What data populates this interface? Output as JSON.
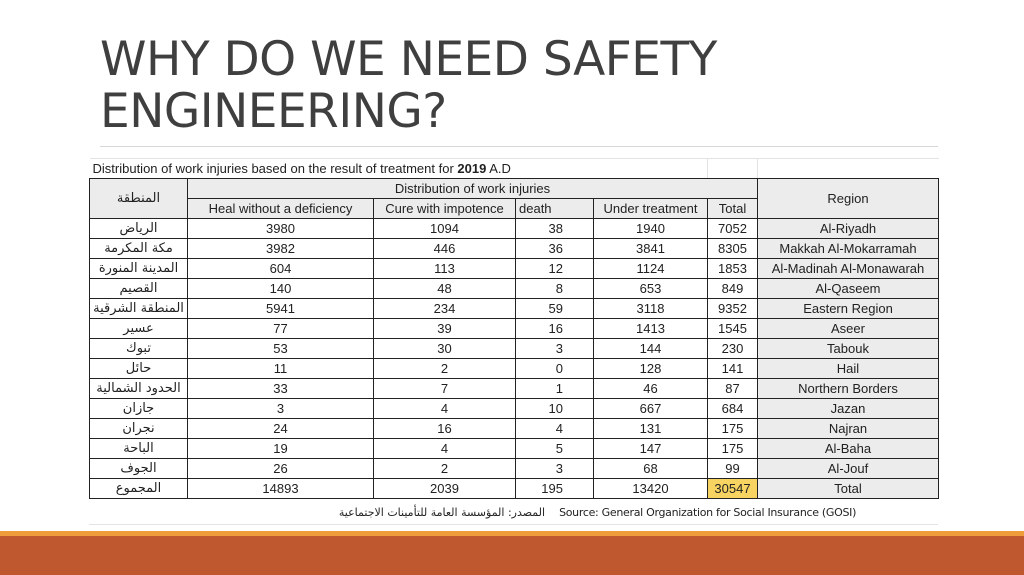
{
  "slide": {
    "title_line1": "WHY DO WE NEED SAFETY",
    "title_line2": "ENGINEERING?"
  },
  "table": {
    "caption_prefix": "Distribution of work injuries based on the result of treatment for ",
    "caption_year": "2019",
    "caption_suffix": " A.D",
    "region_ar_header": "المنطقة",
    "group_header": "Distribution of work injuries",
    "region_header": "Region",
    "columns": [
      "Heal without a deficiency",
      "Cure with impotence",
      "death",
      "Under treatment",
      "Total"
    ],
    "rows": [
      {
        "ar": "الرياض",
        "values": [
          "3980",
          "1094",
          "38",
          "1940",
          "7052"
        ],
        "en": "Al-Riyadh"
      },
      {
        "ar": "مكة المكرمة",
        "values": [
          "3982",
          "446",
          "36",
          "3841",
          "8305"
        ],
        "en": "Makkah Al-Mokarramah"
      },
      {
        "ar": "المدينة المنورة",
        "values": [
          "604",
          "113",
          "12",
          "1124",
          "1853"
        ],
        "en": "Al-Madinah Al-Monawarah"
      },
      {
        "ar": "القصيم",
        "values": [
          "140",
          "48",
          "8",
          "653",
          "849"
        ],
        "en": "Al-Qaseem"
      },
      {
        "ar": "المنطقة الشرقية",
        "values": [
          "5941",
          "234",
          "59",
          "3118",
          "9352"
        ],
        "en": "Eastern Region"
      },
      {
        "ar": "عسير",
        "values": [
          "77",
          "39",
          "16",
          "1413",
          "1545"
        ],
        "en": "Aseer"
      },
      {
        "ar": "تبوك",
        "values": [
          "53",
          "30",
          "3",
          "144",
          "230"
        ],
        "en": "Tabouk"
      },
      {
        "ar": "حائل",
        "values": [
          "11",
          "2",
          "0",
          "128",
          "141"
        ],
        "en": "Hail"
      },
      {
        "ar": "الحدود الشمالية",
        "values": [
          "33",
          "7",
          "1",
          "46",
          "87"
        ],
        "en": "Northern Borders"
      },
      {
        "ar": "جازان",
        "values": [
          "3",
          "4",
          "10",
          "667",
          "684"
        ],
        "en": "Jazan"
      },
      {
        "ar": "نجران",
        "values": [
          "24",
          "16",
          "4",
          "131",
          "175"
        ],
        "en": "Najran"
      },
      {
        "ar": "الباحة",
        "values": [
          "19",
          "4",
          "5",
          "147",
          "175"
        ],
        "en": "Al-Baha"
      },
      {
        "ar": "الجوف",
        "values": [
          "26",
          "2",
          "3",
          "68",
          "99"
        ],
        "en": "Al-Jouf"
      }
    ],
    "total_row": {
      "ar": "المجموع",
      "values": [
        "14893",
        "2039",
        "195",
        "13420",
        "30547"
      ],
      "en": "Total"
    },
    "source_ar": "المصدر: المؤسسة العامة للتأمينات الاجتماعية",
    "source_en": "Source: General Organization for Social Insurance (GOSI)"
  },
  "colors": {
    "title": "#3f3f3f",
    "band": "#c0582f",
    "band_accent": "#ef9c3a",
    "highlight": "#f7d462",
    "shade": "#ececec"
  }
}
